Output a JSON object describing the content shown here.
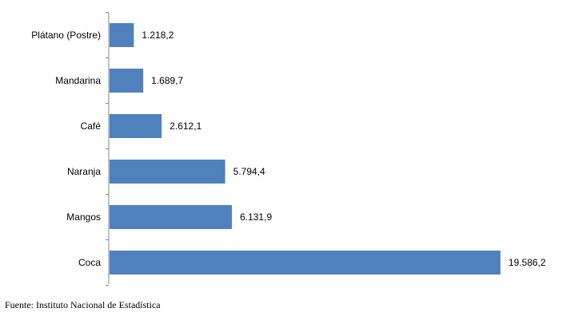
{
  "chart_data": {
    "type": "bar",
    "orientation": "horizontal",
    "categories": [
      "Plátano (Postre)",
      "Mandarina",
      "Café",
      "Naranja",
      "Mangos",
      "Coca"
    ],
    "values": [
      1218.2,
      1689.7,
      2612.1,
      5794.4,
      6131.9,
      19586.2
    ],
    "value_labels": [
      "1.218,2",
      "1.689,7",
      "2.612,1",
      "5.794,4",
      "6.131,9",
      "19.586,2"
    ],
    "xlim": [
      0,
      19586.2
    ],
    "grid": false,
    "legend": "none",
    "bar_color": "#4f81bd",
    "axis_color": "#868686"
  },
  "source": "Fuente: Instituto Nacional de Estadística"
}
